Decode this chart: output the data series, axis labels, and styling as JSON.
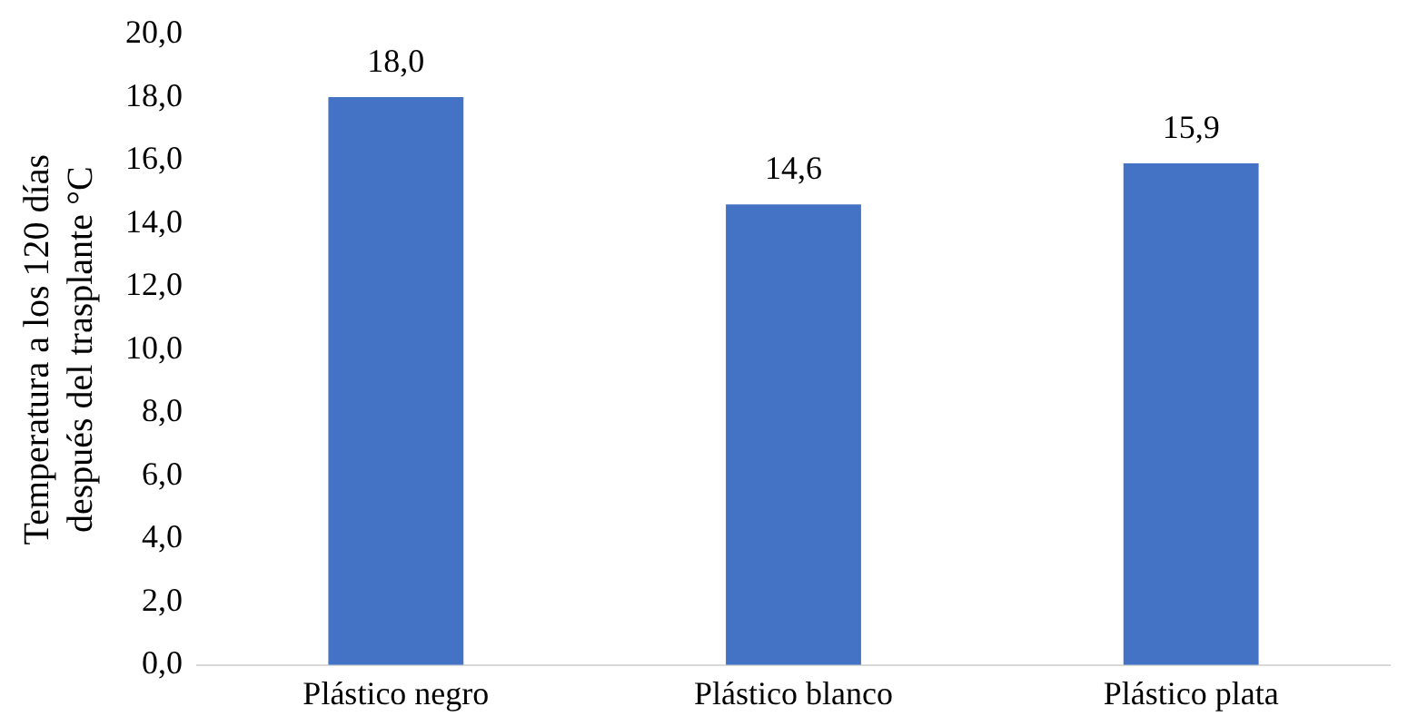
{
  "chart_data": {
    "type": "bar",
    "ylabel": "Temperatura a los 120 días\ndespués del trasplante °C",
    "categories": [
      "Plástico negro",
      "Plástico blanco",
      "Plástico plata"
    ],
    "values": [
      18.0,
      14.6,
      15.9
    ],
    "color": "#4472c4",
    "value_labels": [
      "18,0",
      "14,6",
      "15,9"
    ],
    "ylim": [
      0,
      20
    ],
    "yticks": [
      {
        "value": 0,
        "label": "0,0"
      },
      {
        "value": 2,
        "label": "2,0"
      },
      {
        "value": 4,
        "label": "4,0"
      },
      {
        "value": 6,
        "label": "6,0"
      },
      {
        "value": 8,
        "label": "8,0"
      },
      {
        "value": 10,
        "label": "10,0"
      },
      {
        "value": 12,
        "label": "12,0"
      },
      {
        "value": 14,
        "label": "14,0"
      },
      {
        "value": 16,
        "label": "16,0"
      },
      {
        "value": 18,
        "label": "18,0"
      },
      {
        "value": 20,
        "label": "20,0"
      }
    ],
    "grid": false,
    "legend": false
  }
}
